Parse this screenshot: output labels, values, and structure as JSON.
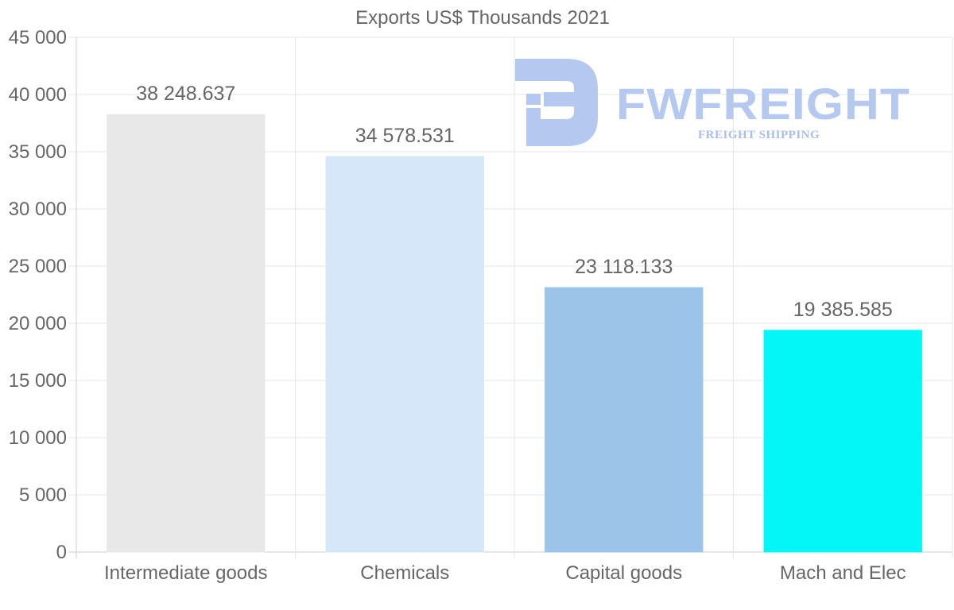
{
  "chart_data": {
    "type": "bar",
    "title": "Exports US$ Thousands 2021",
    "categories": [
      "Intermediate goods",
      "Chemicals",
      "Capital goods",
      "Mach and Elec"
    ],
    "values": [
      38248.637,
      34578.531,
      23118.133,
      19385.585
    ],
    "data_labels": [
      "38 248.637",
      "34 578.531",
      "23 118.133",
      "19 385.585"
    ],
    "bar_colors": [
      "#e8e8e8",
      "#d6e7f9",
      "#9cc4e8",
      "#03f7f7"
    ],
    "ylim": [
      0,
      45000
    ],
    "y_ticks": [
      0,
      5000,
      10000,
      15000,
      20000,
      25000,
      30000,
      35000,
      40000,
      45000
    ],
    "y_tick_labels": [
      "0",
      "5 000",
      "10 000",
      "15 000",
      "20 000",
      "25 000",
      "30 000",
      "35 000",
      "40 000",
      "45 000"
    ],
    "xlabel": "",
    "ylabel": "",
    "grid": true,
    "legend": "none"
  },
  "watermark": {
    "brand": "FWFREIGHT",
    "tagline": "FREIGHT SHIPPING",
    "color": "#b4c8f0"
  }
}
